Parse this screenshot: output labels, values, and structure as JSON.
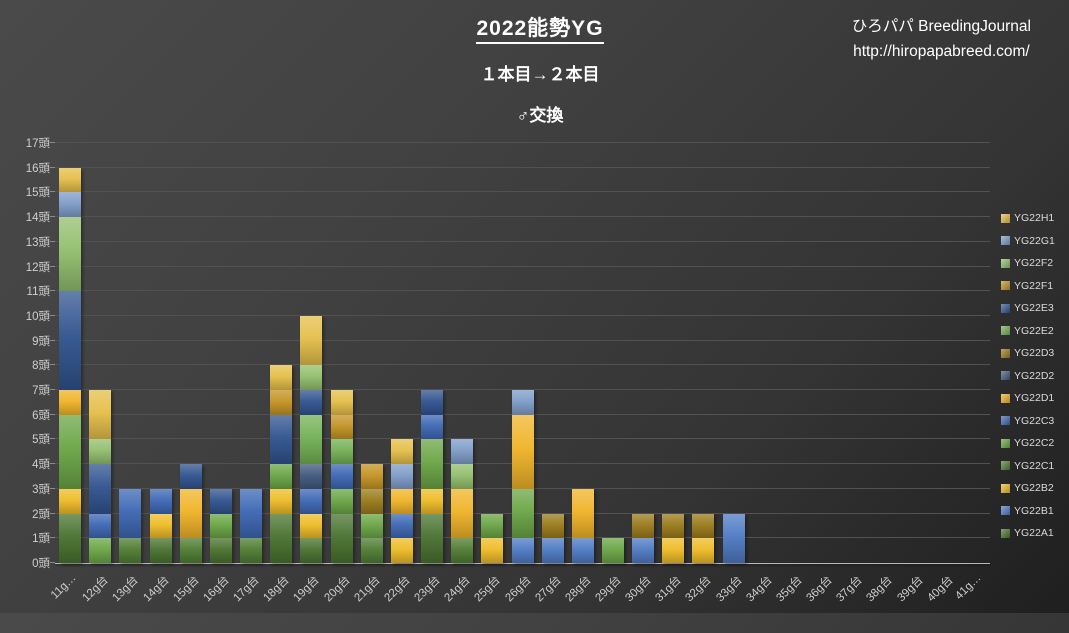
{
  "header": {
    "title": "2022能勢YG",
    "subtitle1": "１本目→２本目",
    "subtitle2": "♂交換",
    "credit_line1": "ひろパパ BreedingJournal",
    "credit_line2": "http://hiropapabreed.com/"
  },
  "chart_data": {
    "type": "bar",
    "stacked": true,
    "grid": true,
    "legend_position": "right",
    "ylim": [
      0,
      17
    ],
    "unit_suffix": "頭",
    "yticks": [
      "0頭",
      "1頭",
      "2頭",
      "3頭",
      "4頭",
      "5頭",
      "6頭",
      "7頭",
      "8頭",
      "9頭",
      "10頭",
      "11頭",
      "12頭",
      "13頭",
      "14頭",
      "15頭",
      "16頭",
      "17頭"
    ],
    "categories": [
      "11g…",
      "12g台",
      "13g台",
      "14g台",
      "15g台",
      "16g台",
      "17g台",
      "18g台",
      "19g台",
      "20g台",
      "21g台",
      "22g台",
      "23g台",
      "24g台",
      "25g台",
      "26g台",
      "27g台",
      "28g台",
      "29g台",
      "30g台",
      "31g台",
      "32g台",
      "33g台",
      "34g台",
      "35g台",
      "36g台",
      "37g台",
      "38g台",
      "39g台",
      "40g台",
      "41g…"
    ],
    "legend": [
      {
        "name": "YG22H1",
        "color": "#e5bf4a"
      },
      {
        "name": "YG22G1",
        "color": "#7f9dc9"
      },
      {
        "name": "YG22F2",
        "color": "#92bf6e"
      },
      {
        "name": "YG22F1",
        "color": "#c49425"
      },
      {
        "name": "YG22E3",
        "color": "#31548f"
      },
      {
        "name": "YG22E2",
        "color": "#74b156"
      },
      {
        "name": "YG22D3",
        "color": "#9a7b1c"
      },
      {
        "name": "YG22D2",
        "color": "#42597e"
      },
      {
        "name": "YG22D1",
        "color": "#f0b429"
      },
      {
        "name": "YG22C3",
        "color": "#3e68b4"
      },
      {
        "name": "YG22C2",
        "color": "#6ba646"
      },
      {
        "name": "YG22C1",
        "color": "#507d33"
      },
      {
        "name": "YG22B2",
        "color": "#eebc28"
      },
      {
        "name": "YG22B1",
        "color": "#4f7bc4"
      },
      {
        "name": "YG22A1",
        "color": "#4a7330"
      }
    ],
    "bars": [
      {
        "category": "11g…",
        "total": 16,
        "segments": [
          [
            "YG22A1",
            2
          ],
          [
            "YG22B2",
            1
          ],
          [
            "YG22C2",
            3
          ],
          [
            "YG22D1",
            1
          ],
          [
            "YG22E3",
            4
          ],
          [
            "YG22F2",
            3
          ],
          [
            "YG22G1",
            1
          ],
          [
            "YG22H1",
            1
          ]
        ]
      },
      {
        "category": "12g台",
        "total": 7,
        "segments": [
          [
            "YG22C2",
            1
          ],
          [
            "YG22C3",
            1
          ],
          [
            "YG22E3",
            2
          ],
          [
            "YG22F2",
            1
          ],
          [
            "YG22H1",
            2
          ]
        ]
      },
      {
        "category": "13g台",
        "total": 3,
        "segments": [
          [
            "YG22C1",
            1
          ],
          [
            "YG22C3",
            2
          ]
        ]
      },
      {
        "category": "14g台",
        "total": 3,
        "segments": [
          [
            "YG22A1",
            1
          ],
          [
            "YG22B2",
            1
          ],
          [
            "YG22C3",
            1
          ]
        ]
      },
      {
        "category": "15g台",
        "total": 4,
        "segments": [
          [
            "YG22C1",
            1
          ],
          [
            "YG22D1",
            2
          ],
          [
            "YG22E3",
            1
          ]
        ]
      },
      {
        "category": "16g台",
        "total": 3,
        "segments": [
          [
            "YG22A1",
            1
          ],
          [
            "YG22C2",
            1
          ],
          [
            "YG22E3",
            1
          ]
        ]
      },
      {
        "category": "17g台",
        "total": 3,
        "segments": [
          [
            "YG22C1",
            1
          ],
          [
            "YG22C3",
            2
          ]
        ]
      },
      {
        "category": "18g台",
        "total": 8,
        "segments": [
          [
            "YG22A1",
            2
          ],
          [
            "YG22B2",
            1
          ],
          [
            "YG22C2",
            1
          ],
          [
            "YG22E3",
            2
          ],
          [
            "YG22F1",
            1
          ],
          [
            "YG22H1",
            1
          ]
        ]
      },
      {
        "category": "19g台",
        "total": 10,
        "segments": [
          [
            "YG22A1",
            1
          ],
          [
            "YG22B2",
            1
          ],
          [
            "YG22C3",
            1
          ],
          [
            "YG22D2",
            1
          ],
          [
            "YG22E2",
            2
          ],
          [
            "YG22E3",
            1
          ],
          [
            "YG22F2",
            1
          ],
          [
            "YG22H1",
            2
          ]
        ]
      },
      {
        "category": "20g台",
        "total": 7,
        "segments": [
          [
            "YG22A1",
            2
          ],
          [
            "YG22C2",
            1
          ],
          [
            "YG22C3",
            1
          ],
          [
            "YG22E2",
            1
          ],
          [
            "YG22F1",
            1
          ],
          [
            "YG22H1",
            1
          ]
        ]
      },
      {
        "category": "21g台",
        "total": 4,
        "segments": [
          [
            "YG22C1",
            1
          ],
          [
            "YG22C2",
            1
          ],
          [
            "YG22D3",
            1
          ],
          [
            "YG22F1",
            1
          ]
        ]
      },
      {
        "category": "22g台",
        "total": 5,
        "segments": [
          [
            "YG22B2",
            1
          ],
          [
            "YG22C3",
            1
          ],
          [
            "YG22D1",
            1
          ],
          [
            "YG22G1",
            1
          ],
          [
            "YG22H1",
            1
          ]
        ]
      },
      {
        "category": "23g台",
        "total": 7,
        "segments": [
          [
            "YG22A1",
            2
          ],
          [
            "YG22B2",
            1
          ],
          [
            "YG22C2",
            2
          ],
          [
            "YG22C3",
            1
          ],
          [
            "YG22E3",
            1
          ]
        ]
      },
      {
        "category": "24g台",
        "total": 5,
        "segments": [
          [
            "YG22C1",
            1
          ],
          [
            "YG22D1",
            2
          ],
          [
            "YG22F2",
            1
          ],
          [
            "YG22G1",
            1
          ]
        ]
      },
      {
        "category": "25g台",
        "total": 2,
        "segments": [
          [
            "YG22B2",
            1
          ],
          [
            "YG22C2",
            1
          ]
        ]
      },
      {
        "category": "26g台",
        "total": 7,
        "segments": [
          [
            "YG22B1",
            1
          ],
          [
            "YG22C2",
            2
          ],
          [
            "YG22D1",
            3
          ],
          [
            "YG22G1",
            1
          ]
        ]
      },
      {
        "category": "27g台",
        "total": 2,
        "segments": [
          [
            "YG22B1",
            1
          ],
          [
            "YG22D3",
            1
          ]
        ]
      },
      {
        "category": "28g台",
        "total": 3,
        "segments": [
          [
            "YG22B1",
            1
          ],
          [
            "YG22D1",
            2
          ]
        ]
      },
      {
        "category": "29g台",
        "total": 1,
        "segments": [
          [
            "YG22C2",
            1
          ]
        ]
      },
      {
        "category": "30g台",
        "total": 2,
        "segments": [
          [
            "YG22B1",
            1
          ],
          [
            "YG22D3",
            1
          ]
        ]
      },
      {
        "category": "31g台",
        "total": 2,
        "segments": [
          [
            "YG22B2",
            1
          ],
          [
            "YG22D3",
            1
          ]
        ]
      },
      {
        "category": "32g台",
        "total": 2,
        "segments": [
          [
            "YG22B2",
            1
          ],
          [
            "YG22D3",
            1
          ]
        ]
      },
      {
        "category": "33g台",
        "total": 2,
        "segments": [
          [
            "YG22B1",
            2
          ]
        ]
      },
      {
        "category": "34g台",
        "total": 0,
        "segments": []
      },
      {
        "category": "35g台",
        "total": 0,
        "segments": []
      },
      {
        "category": "36g台",
        "total": 0,
        "segments": []
      },
      {
        "category": "37g台",
        "total": 0,
        "segments": []
      },
      {
        "category": "38g台",
        "total": 0,
        "segments": []
      },
      {
        "category": "39g台",
        "total": 0,
        "segments": []
      },
      {
        "category": "40g台",
        "total": 0,
        "segments": []
      },
      {
        "category": "41g…",
        "total": 0,
        "segments": []
      }
    ]
  }
}
